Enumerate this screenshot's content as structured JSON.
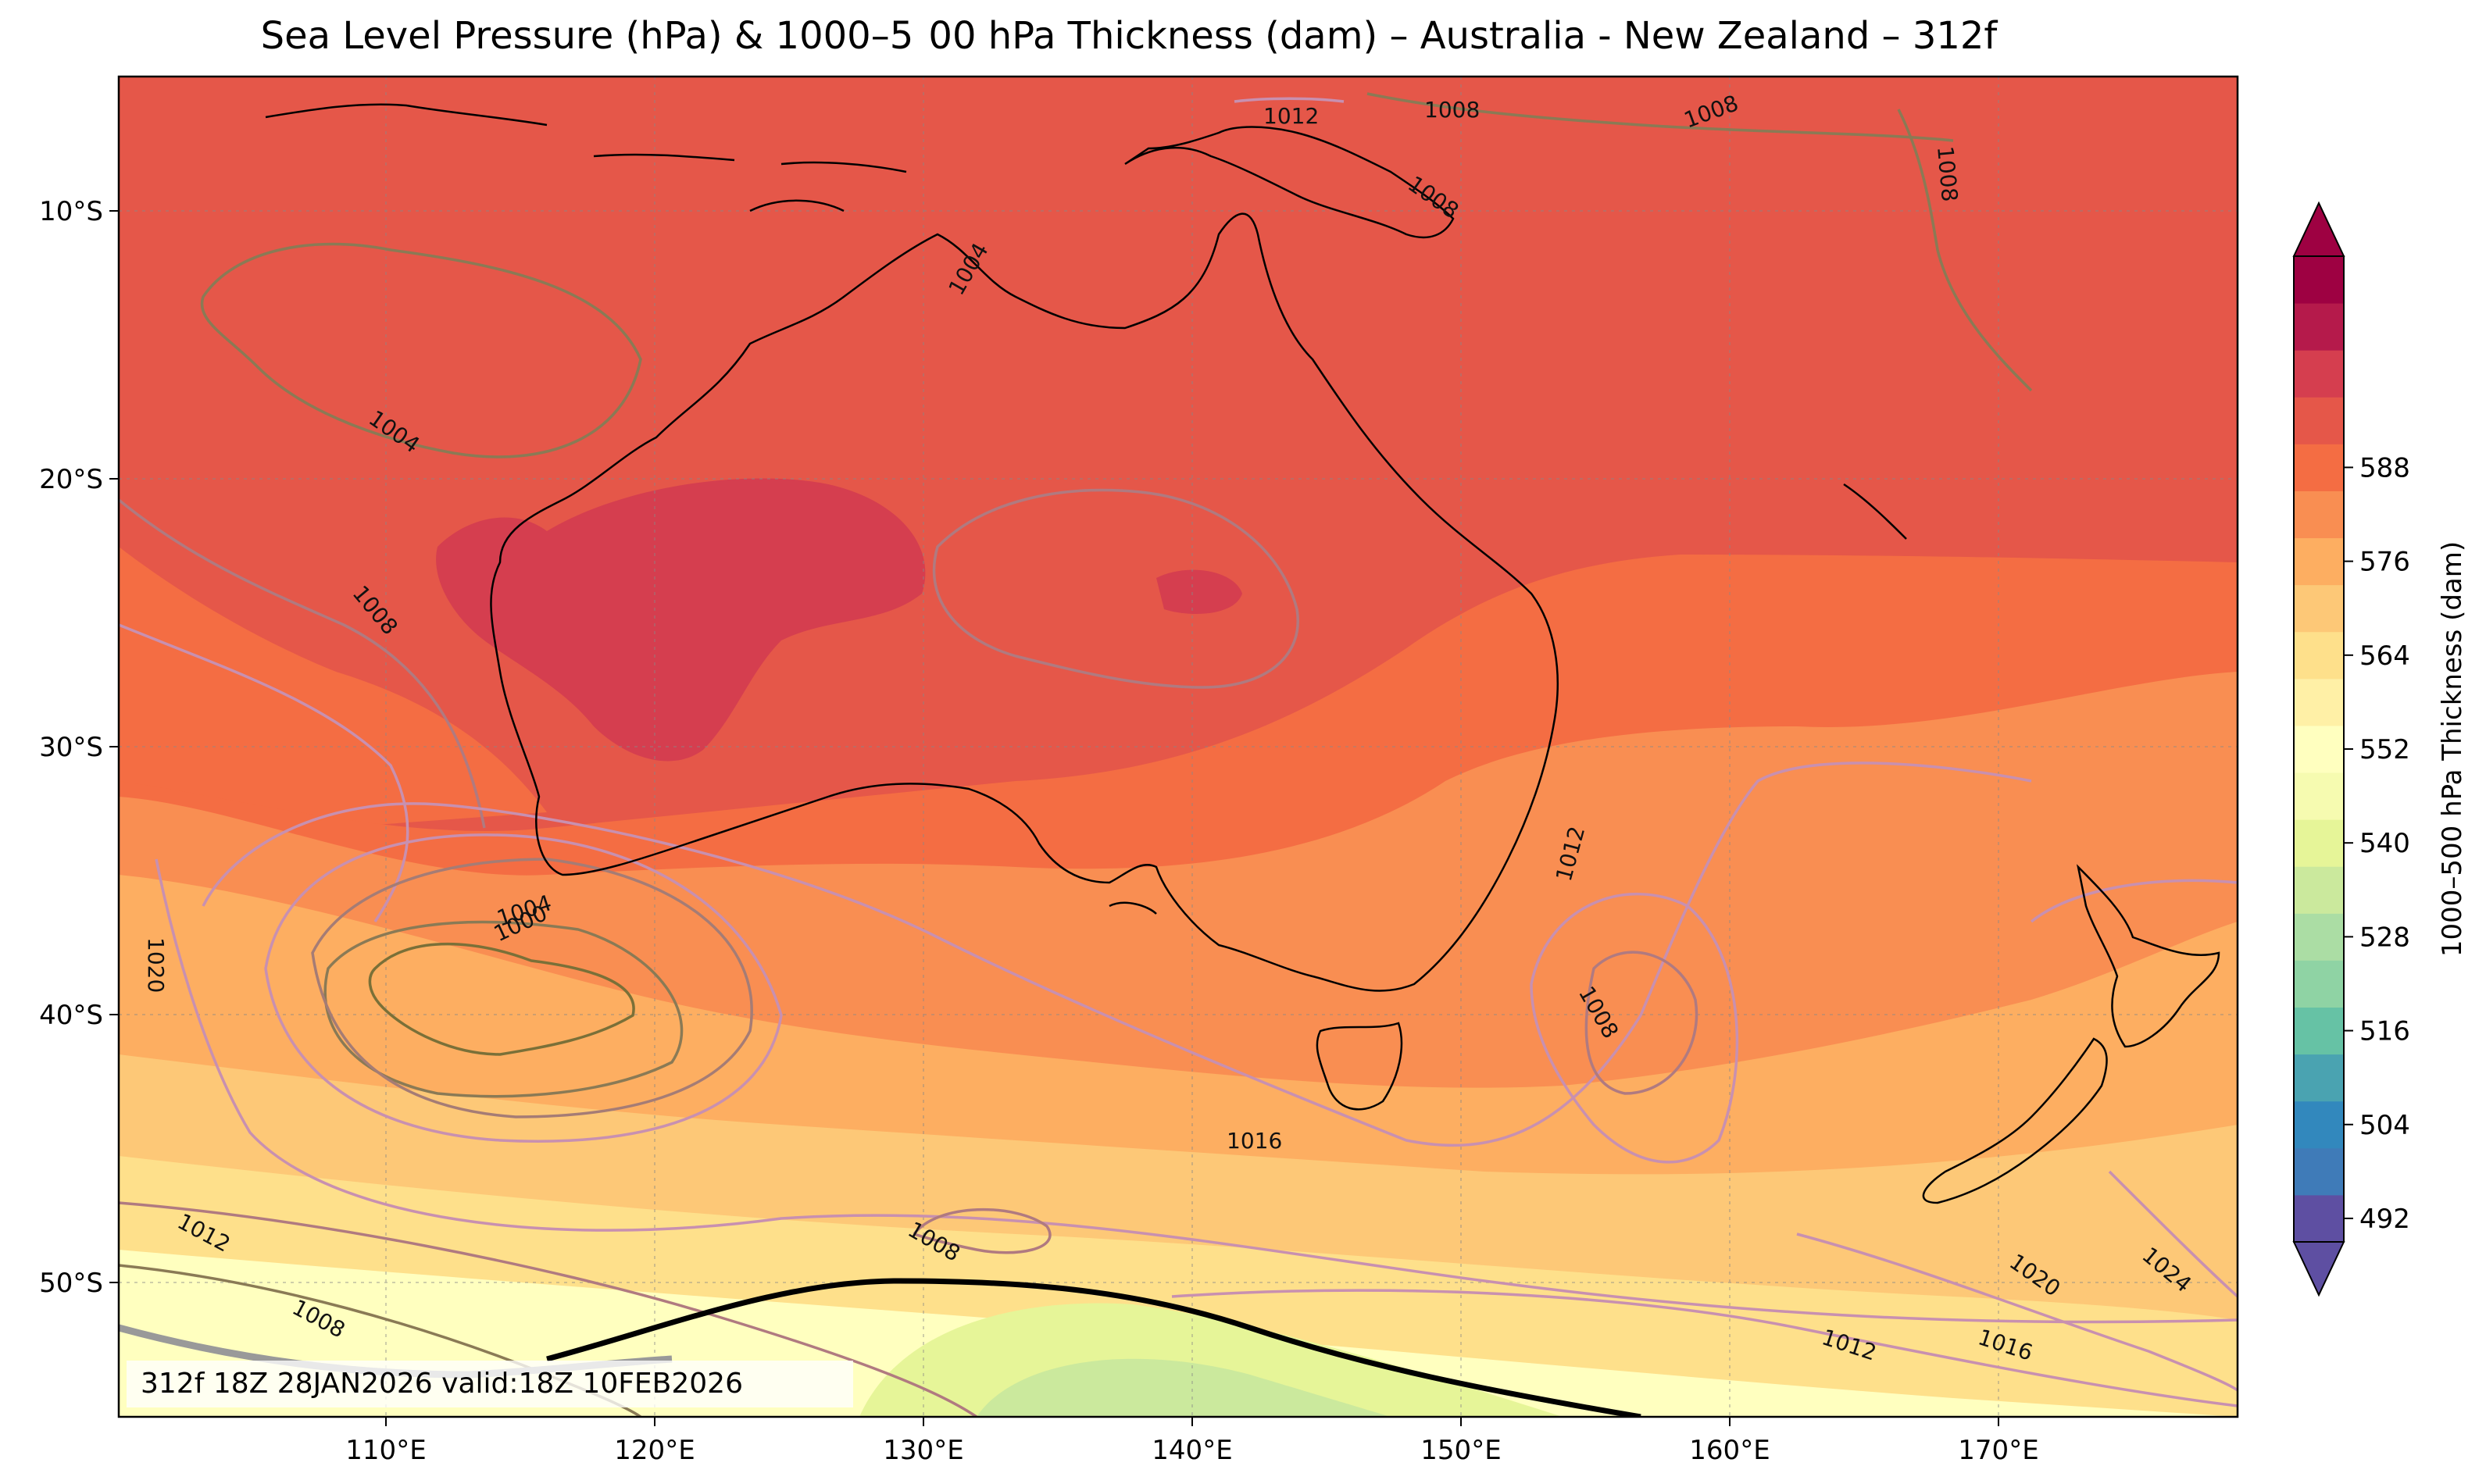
{
  "title": "Sea Level Pressure (hPa) & 1000–5  00 hPa Thickness (dam) – Australia - New Zealand – 312f",
  "run_info": "312f 18Z 28JAN2026 valid:18Z 10FEB2026",
  "map": {
    "lon_range": [
      100,
      179
    ],
    "lat_range": [
      -55,
      -5
    ],
    "lon_ticks": [
      "110°E",
      "120°E",
      "130°E",
      "140°E",
      "150°E",
      "160°E",
      "170°E"
    ],
    "lat_ticks": [
      "10°S",
      "20°S",
      "30°S",
      "40°S",
      "50°S"
    ],
    "isobar_labels": [
      "1012",
      "1008",
      "1008",
      "1008",
      "1008",
      "1004",
      "1004",
      "1000",
      "1008",
      "1020",
      "1012",
      "1008",
      "1016",
      "1008",
      "1012",
      "1008",
      "1012",
      "1016",
      "1020",
      "1024",
      "1004"
    ]
  },
  "colorbar": {
    "label": "1000–500 hPa Thickness (dam)",
    "ticks": [
      "492",
      "504",
      "516",
      "528",
      "540",
      "552",
      "564",
      "576",
      "588"
    ],
    "colors": [
      "#5e4fa2",
      "#3f7bb8",
      "#3288bd",
      "#4aa3b1",
      "#66c2a5",
      "#8fd3a4",
      "#abdda4",
      "#cbe99d",
      "#e6f598",
      "#f6fbb0",
      "#ffffbf",
      "#fff0a6",
      "#fee08b",
      "#fdc877",
      "#fdae61",
      "#f98e52",
      "#f46d43",
      "#e55749",
      "#d53e4f",
      "#b51a4b",
      "#9e0142"
    ]
  },
  "colors": {
    "thickness_576_582": "#e55749",
    "thickness_570_576": "#f46d43",
    "thickness_564_570": "#f98e52",
    "thickness_558_564": "#fdae61",
    "thickness_552_558": "#fdc877",
    "thickness_546_552": "#fee08b",
    "thickness_540_546": "#ffffbf",
    "thickness_534_540": "#e6f598",
    "thickness_582_588": "#d53e4f"
  }
}
